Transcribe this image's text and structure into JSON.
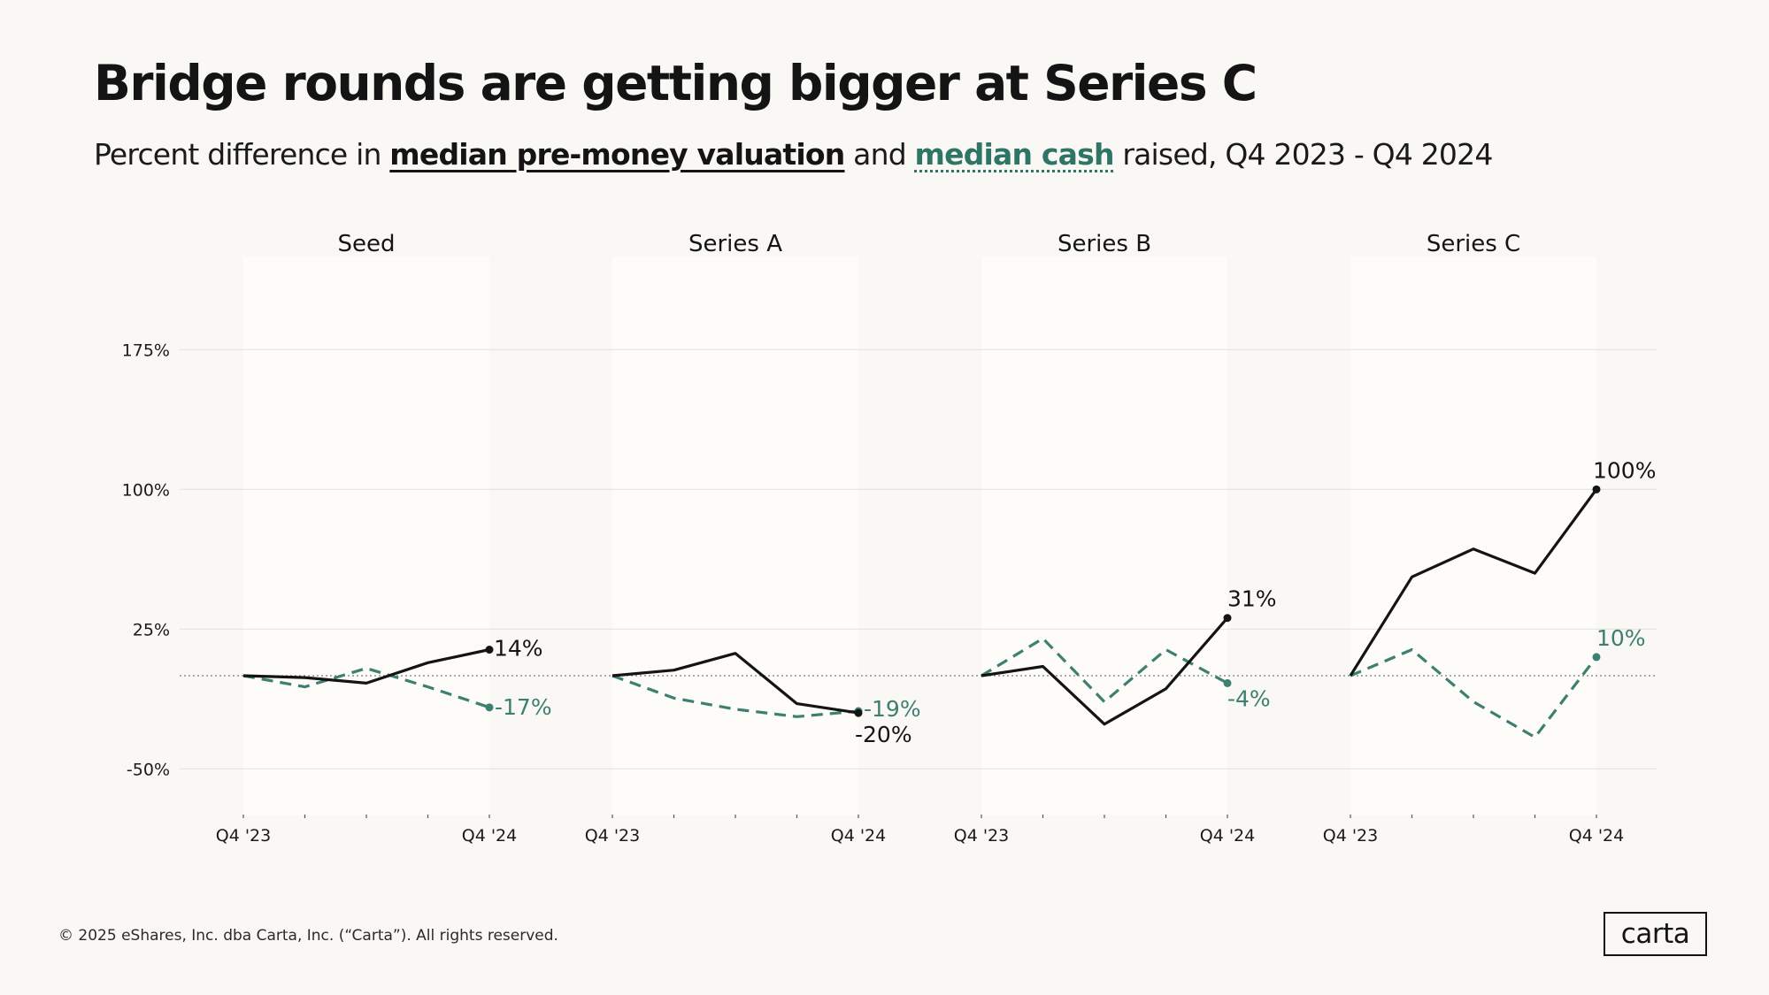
{
  "title": "Bridge rounds are getting bigger at Series C",
  "subtitle": {
    "prefix": "Percent difference in ",
    "valuation_key": "median pre-money valuation",
    "middle": " and ",
    "cash_key": "median cash",
    "suffix": " raised, Q4 2023 - Q4 2024"
  },
  "colors": {
    "valuation": "#141414",
    "cash": "#3d7f70",
    "grid": "#e6e3dc",
    "panel": "#fdfcf9",
    "zero_line": "#7a7a7a"
  },
  "chart_data": {
    "type": "line",
    "title": "Bridge rounds are getting bigger at Series C",
    "ylim": [
      -75,
      225
    ],
    "yticks": [
      -50,
      25,
      100,
      175
    ],
    "ytick_labels": [
      "-50%",
      "25%",
      "100%",
      "175%"
    ],
    "xticks": [
      "Q4 '23",
      "",
      "",
      "",
      "Q4 '24"
    ],
    "series_names": [
      "median pre-money valuation",
      "median cash"
    ],
    "panels": [
      {
        "name": "Seed",
        "valuation": [
          0,
          -1,
          -4,
          7,
          14
        ],
        "cash": [
          0,
          -6,
          4,
          -6,
          -17
        ],
        "valuation_label": "14%",
        "cash_label": "-17%"
      },
      {
        "name": "Series A",
        "valuation": [
          0,
          3,
          12,
          -15,
          -20
        ],
        "cash": [
          0,
          -12,
          -18,
          -22,
          -19
        ],
        "valuation_label": "-20%",
        "cash_label": "-19%"
      },
      {
        "name": "Series B",
        "valuation": [
          0,
          5,
          -26,
          -7,
          31
        ],
        "cash": [
          0,
          20,
          -14,
          14,
          -4
        ],
        "valuation_label": "31%",
        "cash_label": "-4%"
      },
      {
        "name": "Series C",
        "valuation": [
          0,
          53,
          68,
          55,
          100
        ],
        "cash": [
          0,
          14,
          -14,
          -33,
          10
        ],
        "valuation_label": "100%",
        "cash_label": "10%"
      }
    ]
  },
  "footer": "© 2025 eShares, Inc. dba Carta, Inc. (“Carta”). All rights reserved.",
  "logo": "carta"
}
